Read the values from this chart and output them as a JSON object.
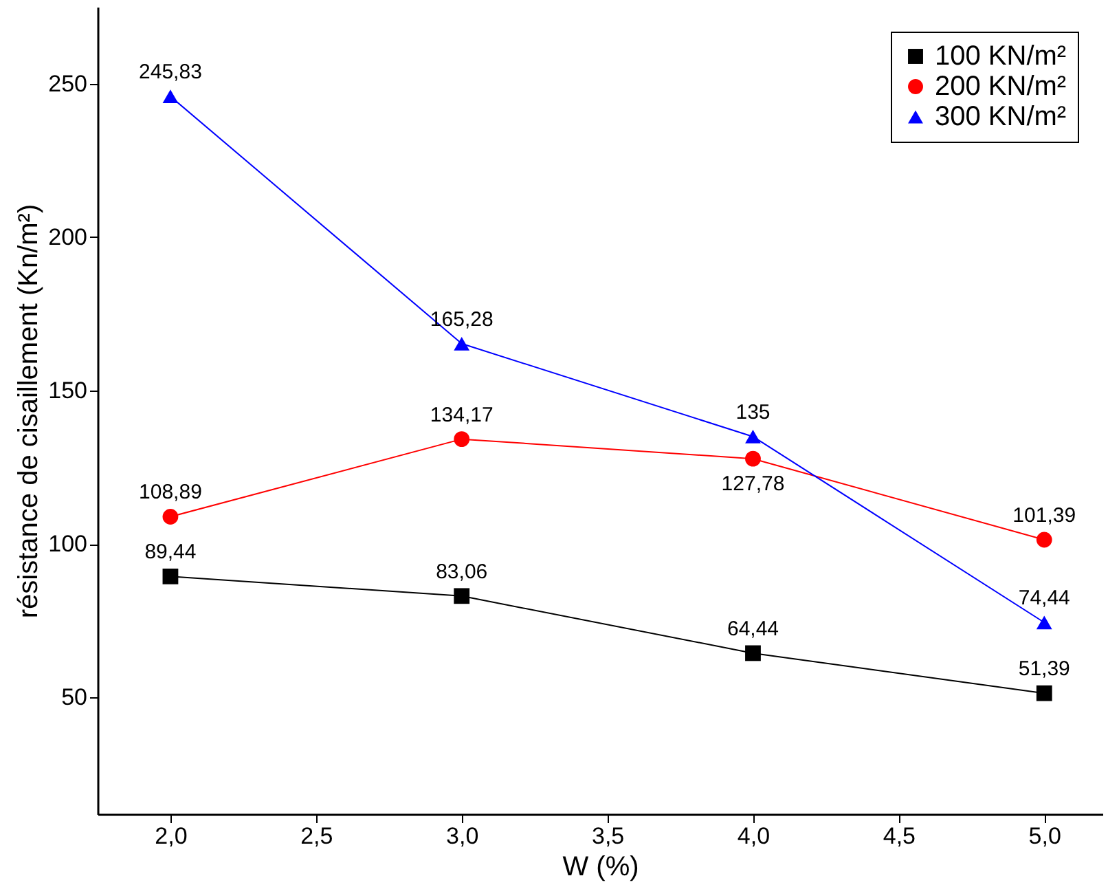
{
  "chart_data": {
    "type": "line",
    "xlabel": "W (%)",
    "ylabel": "résistance de cisaillement  (Kn/m²)",
    "x": [
      2.0,
      3.0,
      4.0,
      5.0
    ],
    "series": [
      {
        "name": "100 KN/m²",
        "color": "#000000",
        "marker": "square",
        "values": [
          89.44,
          83.06,
          64.44,
          51.39
        ],
        "value_labels": [
          "89,44",
          "83,06",
          "64,44",
          "51,39"
        ]
      },
      {
        "name": "200 KN/m²",
        "color": "#ff0000",
        "marker": "circle",
        "values": [
          108.89,
          134.17,
          127.78,
          101.39
        ],
        "value_labels": [
          "108,89",
          "134,17",
          "127,78",
          "101,39"
        ]
      },
      {
        "name": "300 KN/m²",
        "color": "#0000ff",
        "marker": "triangle",
        "values": [
          245.83,
          165.28,
          135,
          74.44
        ],
        "value_labels": [
          "245,83",
          "165,28",
          "135",
          "74,44"
        ]
      }
    ],
    "xlim": [
      1.75,
      5.2
    ],
    "ylim": [
      12,
      275
    ],
    "xticks": [
      {
        "value": 2.0,
        "label": "2,0"
      },
      {
        "value": 2.5,
        "label": "2,5"
      },
      {
        "value": 3.0,
        "label": "3,0"
      },
      {
        "value": 3.5,
        "label": "3,5"
      },
      {
        "value": 4.0,
        "label": "4,0"
      },
      {
        "value": 4.5,
        "label": "4,5"
      },
      {
        "value": 5.0,
        "label": "5,0"
      }
    ],
    "yticks": [
      50,
      100,
      150,
      200,
      250
    ],
    "grid": false,
    "legend": "top right",
    "line_style": "solid"
  }
}
